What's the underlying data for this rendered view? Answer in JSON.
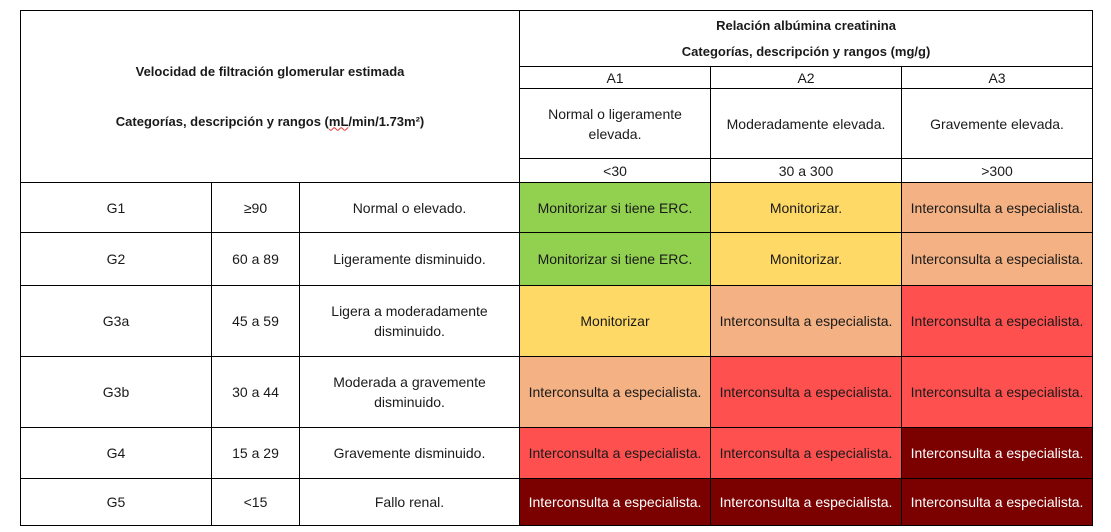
{
  "header": {
    "gfr_title": "Velocidad de filtración glomerular estimada",
    "gfr_subtitle_pre": "Categorías, descripción y rangos (",
    "gfr_subtitle_unit": "mL",
    "gfr_subtitle_post": "/min/1.73m²)",
    "acr_title": "Relación albúmina creatinina",
    "acr_subtitle": "Categorías, descripción y rangos (mg/g)",
    "categories": [
      {
        "code": "A1",
        "description": "Normal o ligeramente elevada.",
        "range": "<30"
      },
      {
        "code": "A2",
        "description": "Moderadamente elevada.",
        "range": "30 a 300"
      },
      {
        "code": "A3",
        "description": "Gravemente elevada.",
        "range": ">300"
      }
    ]
  },
  "rows": [
    {
      "category": "G1",
      "range": "≥90",
      "description": "Normal o elevado.",
      "cells": [
        {
          "text": "Monitorizar si tiene ERC.",
          "color": "#92d050"
        },
        {
          "text": "Monitorizar.",
          "color": "#ffd966"
        },
        {
          "text": "Interconsulta a especialista.",
          "color": "#f4b183"
        }
      ]
    },
    {
      "category": "G2",
      "range": "60 a 89",
      "description": "Ligeramente disminuido.",
      "cells": [
        {
          "text": "Monitorizar si tiene ERC.",
          "color": "#92d050"
        },
        {
          "text": "Monitorizar.",
          "color": "#ffd966"
        },
        {
          "text": "Interconsulta a especialista.",
          "color": "#f4b183"
        }
      ]
    },
    {
      "category": "G3a",
      "range": "45 a 59",
      "description": "Ligera a moderadamente disminuido.",
      "cells": [
        {
          "text": "Monitorizar",
          "color": "#ffd966"
        },
        {
          "text": "Interconsulta a especialista.",
          "color": "#f4b183"
        },
        {
          "text": "Interconsulta a especialista.",
          "color": "#ff5050"
        }
      ]
    },
    {
      "category": "G3b",
      "range": "30 a 44",
      "description": "Moderada a gravemente disminuido.",
      "cells": [
        {
          "text": "Interconsulta a especialista.",
          "color": "#f4b183"
        },
        {
          "text": "Interconsulta a especialista.",
          "color": "#ff5050"
        },
        {
          "text": "Interconsulta a especialista.",
          "color": "#ff5050"
        }
      ]
    },
    {
      "category": "G4",
      "range": "15 a 29",
      "description": "Gravemente disminuido.",
      "cells": [
        {
          "text": "Interconsulta a especialista.",
          "color": "#ff5050"
        },
        {
          "text": "Interconsulta a especialista.",
          "color": "#ff5050"
        },
        {
          "text": "Interconsulta a especialista.",
          "color": "#7b0000"
        }
      ]
    },
    {
      "category": "G5",
      "range": "<15",
      "description": "Fallo renal.",
      "cells": [
        {
          "text": "Interconsulta a especialista.",
          "color": "#7b0000"
        },
        {
          "text": "Interconsulta a especialista.",
          "color": "#7b0000"
        },
        {
          "text": "Interconsulta a especialista.",
          "color": "#7b0000"
        }
      ]
    }
  ]
}
